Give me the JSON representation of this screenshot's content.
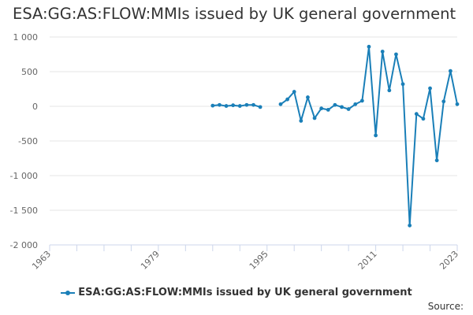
{
  "chart_data": {
    "type": "line",
    "title": "ESA:GG:AS:FLOW:MMIs issued by UK general government",
    "xlabel": "",
    "ylabel": "",
    "x_ticks": [
      1963,
      1979,
      1995,
      2011,
      2023
    ],
    "x_range": [
      1963,
      2023
    ],
    "ylim": [
      -2000,
      1000
    ],
    "y_ticks": [
      {
        "value": 1000,
        "label": "1 000"
      },
      {
        "value": 500,
        "label": "500"
      },
      {
        "value": 0,
        "label": "0"
      },
      {
        "value": -500,
        "label": "-500"
      },
      {
        "value": -1000,
        "label": "-1 000"
      },
      {
        "value": -1500,
        "label": "-1 500"
      },
      {
        "value": -2000,
        "label": "-2 000"
      }
    ],
    "grid": true,
    "legend": "bottom-center",
    "color": "#1a7fb8",
    "series": [
      {
        "name": "ESA:GG:AS:FLOW:MMIs issued by UK general government",
        "segments": [
          [
            [
              1987,
              10
            ],
            [
              1988,
              20
            ],
            [
              1989,
              5
            ],
            [
              1990,
              15
            ],
            [
              1991,
              5
            ],
            [
              1992,
              20
            ],
            [
              1993,
              20
            ],
            [
              1994,
              -10
            ]
          ],
          [
            [
              1997,
              30
            ],
            [
              1998,
              100
            ],
            [
              1999,
              210
            ],
            [
              2000,
              -210
            ],
            [
              2001,
              130
            ],
            [
              2002,
              -170
            ],
            [
              2003,
              -30
            ],
            [
              2004,
              -50
            ],
            [
              2005,
              20
            ],
            [
              2006,
              -10
            ],
            [
              2007,
              -40
            ],
            [
              2008,
              30
            ],
            [
              2009,
              80
            ],
            [
              2010,
              860
            ],
            [
              2011,
              -420
            ],
            [
              2012,
              790
            ],
            [
              2013,
              230
            ],
            [
              2014,
              750
            ],
            [
              2015,
              320
            ],
            [
              2016,
              -1720
            ],
            [
              2017,
              -110
            ],
            [
              2018,
              -180
            ],
            [
              2019,
              260
            ],
            [
              2020,
              -780
            ],
            [
              2021,
              70
            ],
            [
              2022,
              510
            ],
            [
              2023,
              30
            ]
          ]
        ]
      }
    ]
  },
  "legend_label": "ESA:GG:AS:FLOW:MMIs issued by UK general government",
  "source_label": "Source:"
}
